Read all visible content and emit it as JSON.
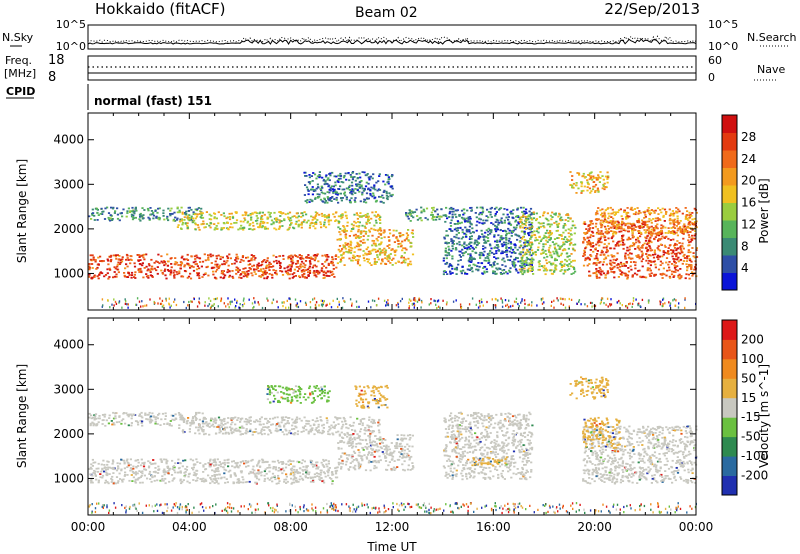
{
  "header": {
    "station": "Hokkaido (fitACF)",
    "beam": "Beam 02",
    "date": "22/Sep/2013"
  },
  "top_panels": {
    "nsky_label": "N.Sky",
    "nsearch_label": "N.Search",
    "noise_ticks_left": [
      "10^5",
      "10^0"
    ],
    "noise_ticks_right": [
      "10^5",
      "10^0"
    ],
    "freq_label": "Freq.",
    "freq_unit": "[MHz]",
    "freq_ticks": [
      "18",
      "8"
    ],
    "nave_label": "Nave",
    "nave_ticks": [
      "60",
      "0"
    ],
    "cpid_label": "CPID",
    "cpid_value": "normal (fast) 151"
  },
  "colors": {
    "power_scale": [
      "#0a14d8",
      "#2e4fa6",
      "#3a8a74",
      "#57b45a",
      "#9acd3f",
      "#f0c020",
      "#f39a1e",
      "#f06a1a",
      "#e33a10",
      "#d01010"
    ],
    "velocity_scale": [
      "#2030b0",
      "#2a6aa0",
      "#2e8a50",
      "#6ac040",
      "#c8c8c0",
      "#e6b040",
      "#ef8a1e",
      "#e85518",
      "#dd1818"
    ]
  },
  "chart_data": [
    {
      "type": "heatmap",
      "name": "power",
      "xlabel": "",
      "ylabel": "Slant Range [km]",
      "x_ticks": [
        "00:00",
        "04:00",
        "08:00",
        "12:00",
        "16:00",
        "20:00",
        "00:00"
      ],
      "xlim_hours": [
        0,
        24
      ],
      "ylim_km": [
        180,
        4600
      ],
      "y_ticks": [
        1000,
        2000,
        3000,
        4000
      ],
      "colorbar_label": "Power [dB]",
      "colorbar_ticks": [
        "28",
        "24",
        "20",
        "16",
        "12",
        "8",
        "4"
      ],
      "colorbar_range": [
        0,
        30
      ],
      "echo_bands": [
        {
          "t0": 0,
          "t1": 9.8,
          "r0": 900,
          "r1": 1450,
          "value": 25
        },
        {
          "t0": 9.8,
          "t1": 12.8,
          "r0": 1200,
          "r1": 2000,
          "value": 18
        },
        {
          "t0": 0,
          "t1": 4.5,
          "r0": 2200,
          "r1": 2500,
          "value": 8
        },
        {
          "t0": 3.5,
          "t1": 11.5,
          "r0": 2000,
          "r1": 2400,
          "value": 15
        },
        {
          "t0": 8.5,
          "t1": 12.0,
          "r0": 2600,
          "r1": 3300,
          "value": 6
        },
        {
          "t0": 12.5,
          "t1": 14.0,
          "r0": 2200,
          "r1": 2500,
          "value": 10
        },
        {
          "t0": 14.0,
          "t1": 17.5,
          "r0": 1000,
          "r1": 2500,
          "value": 6
        },
        {
          "t0": 17.0,
          "t1": 19.2,
          "r0": 1000,
          "r1": 2400,
          "value": 14
        },
        {
          "t0": 19.5,
          "t1": 24.0,
          "r0": 900,
          "r1": 2200,
          "value": 24
        },
        {
          "t0": 20.0,
          "t1": 24.0,
          "r0": 1900,
          "r1": 2500,
          "value": 20
        },
        {
          "t0": 19.0,
          "t1": 20.5,
          "r0": 2800,
          "r1": 3300,
          "value": 18
        }
      ]
    },
    {
      "type": "heatmap",
      "name": "velocity",
      "xlabel": "Time UT",
      "ylabel": "Slant Range [km]",
      "x_ticks": [
        "00:00",
        "04:00",
        "08:00",
        "12:00",
        "16:00",
        "20:00",
        "00:00"
      ],
      "xlim_hours": [
        0,
        24
      ],
      "ylim_km": [
        180,
        4600
      ],
      "y_ticks": [
        1000,
        2000,
        3000,
        4000
      ],
      "colorbar_label": "Velocity [m s^-1]",
      "colorbar_ticks": [
        "200",
        "100",
        "50",
        "15",
        "-15",
        "-50",
        "-100",
        "-200"
      ],
      "colorbar_range": [
        -250,
        250
      ],
      "echo_bands": [
        {
          "t0": 0,
          "t1": 9.8,
          "r0": 900,
          "r1": 1450,
          "value": 0
        },
        {
          "t0": 9.8,
          "t1": 12.8,
          "r0": 1200,
          "r1": 2000,
          "value": 0
        },
        {
          "t0": 0,
          "t1": 4.5,
          "r0": 2200,
          "r1": 2500,
          "value": 0
        },
        {
          "t0": 3.5,
          "t1": 11.5,
          "r0": 2000,
          "r1": 2400,
          "value": 0
        },
        {
          "t0": 7.0,
          "t1": 9.5,
          "r0": 2700,
          "r1": 3100,
          "value": -40
        },
        {
          "t0": 10.5,
          "t1": 11.8,
          "r0": 2600,
          "r1": 3100,
          "value": 45
        },
        {
          "t0": 14.0,
          "t1": 17.5,
          "r0": 1000,
          "r1": 2500,
          "value": 0
        },
        {
          "t0": 15.0,
          "t1": 16.5,
          "r0": 1300,
          "r1": 1500,
          "value": 45
        },
        {
          "t0": 19.5,
          "t1": 24.0,
          "r0": 900,
          "r1": 2200,
          "value": 0
        },
        {
          "t0": 19.5,
          "t1": 21.0,
          "r0": 1700,
          "r1": 2400,
          "value": 50
        },
        {
          "t0": 19.0,
          "t1": 20.5,
          "r0": 2800,
          "r1": 3300,
          "value": 60
        }
      ]
    }
  ]
}
